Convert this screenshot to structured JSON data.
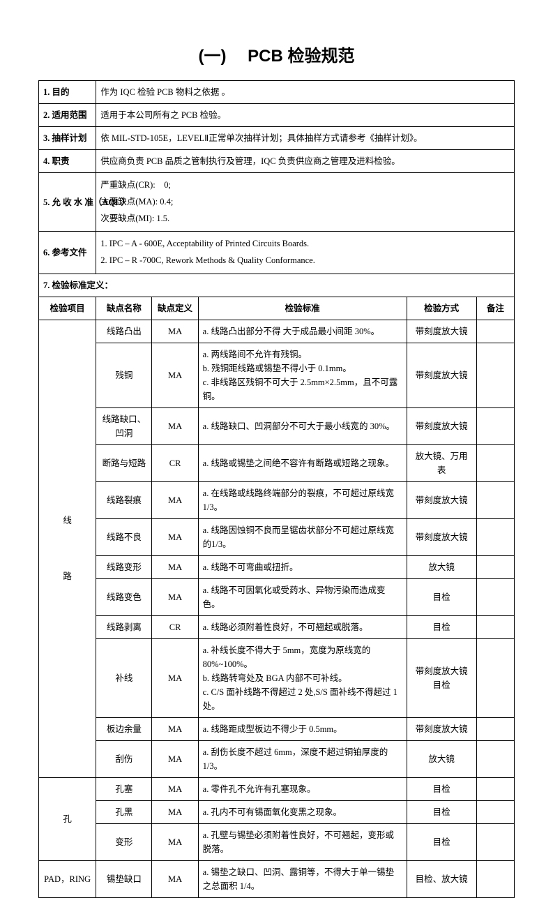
{
  "title": "(一)　 PCB 检验规范",
  "info_rows": [
    {
      "label": "1. 目的",
      "content": "作为 IQC 检验 PCB 物料之依据 。"
    },
    {
      "label": "2. 适用范围",
      "content": "适用于本公司所有之 PCB 检验。"
    },
    {
      "label": "3. 抽样计划",
      "content": "依 MIL-STD-105E，LEVELⅡ正常单次抽样计划；具体抽样方式请参考《抽样计划》。"
    },
    {
      "label": "4. 职责",
      "content": "供应商负责 PCB 品质之管制执行及管理，IQC 负责供应商之管理及进料检验。"
    }
  ],
  "aql": {
    "label": "5. 允 收 水 准（AQL）",
    "lines": [
      "严重缺点(CR):　0;",
      "主要缺点(MA): 0.4;",
      "次要缺点(MI): 1.5."
    ]
  },
  "ref": {
    "label": "6. 参考文件",
    "lines": [
      "1. IPC – A - 600E, Acceptability of Printed Circuits Boards.",
      "2. IPC – R -700C, Rework Methods & Quality Conformance."
    ]
  },
  "section7": "7. 检验标准定义：",
  "headers": {
    "item": "检验项目",
    "defect": "缺点名称",
    "def": "缺点定义",
    "standard": "检验标准",
    "method": "检验方式",
    "remark": "备注"
  },
  "groups": [
    {
      "item": "线\n\n\n\n路",
      "rows": [
        {
          "defect": "线路凸出",
          "def": "MA",
          "standard": "a. 线路凸出部分不得 大于成品最小间距 30%。",
          "method": "带刻度放大镜",
          "remark": ""
        },
        {
          "defect": "残铜",
          "def": "MA",
          "standard": "a. 两线路间不允许有残铜。\nb. 残铜距线路或锡垫不得小于 0.1mm。\nc. 非线路区残铜不可大于 2.5mm×2.5mm，且不可露铜。",
          "method": "带刻度放大镜",
          "remark": ""
        },
        {
          "defect": "线路缺口、凹洞",
          "def": "MA",
          "standard": "a. 线路缺口、凹洞部分不可大于最小线宽的 30%。",
          "method": "带刻度放大镜",
          "remark": ""
        },
        {
          "defect": "断路与短路",
          "def": "CR",
          "standard": "a. 线路或锡垫之间绝不容许有断路或短路之现象。",
          "method": "放大镜、万用表",
          "remark": ""
        },
        {
          "defect": "线路裂痕",
          "def": "MA",
          "standard": "a. 在线路或线路终端部分的裂痕，不可超过原线宽 1/3。",
          "method": "带刻度放大镜",
          "remark": ""
        },
        {
          "defect": "线路不良",
          "def": "MA",
          "standard": "a. 线路因蚀铜不良而呈锯齿状部分不可超过原线宽的1/3。",
          "method": "带刻度放大镜",
          "remark": ""
        },
        {
          "defect": "线路变形",
          "def": "MA",
          "standard": "a. 线路不可弯曲或扭折。",
          "method": "放大镜",
          "remark": ""
        },
        {
          "defect": "线路变色",
          "def": "MA",
          "standard": "a. 线路不可因氧化或受药水、异物污染而造成变色。",
          "method": "目检",
          "remark": ""
        },
        {
          "defect": "线路剥离",
          "def": "CR",
          "standard": "a. 线路必须附着性良好，不可翘起或脱落。",
          "method": "目检",
          "remark": ""
        },
        {
          "defect": "补线",
          "def": "MA",
          "standard": "a. 补线长度不得大于 5mm，宽度为原线宽的 80%~100%。\nb. 线路转弯处及 BGA 内部不可补线。\nc. C/S 面补线路不得超过 2 处,S/S 面补线不得超过 1 处。",
          "method": "带刻度放大镜目检",
          "remark": ""
        },
        {
          "defect": "板边余量",
          "def": "MA",
          "standard": "a. 线路距成型板边不得少于 0.5mm。",
          "method": "带刻度放大镜",
          "remark": ""
        },
        {
          "defect": "刮伤",
          "def": "MA",
          "standard": "a. 刮伤长度不超过 6mm，深度不超过铜铂厚度的 1/3。",
          "method": "放大镜",
          "remark": ""
        }
      ]
    },
    {
      "item": "孔",
      "rows": [
        {
          "defect": "孔塞",
          "def": "MA",
          "standard": "a. 零件孔不允许有孔塞现象。",
          "method": "目检",
          "remark": ""
        },
        {
          "defect": "孔黑",
          "def": "MA",
          "standard": "a. 孔内不可有锡面氧化变黑之现象。",
          "method": "目检",
          "remark": ""
        },
        {
          "defect": "变形",
          "def": "MA",
          "standard": "a. 孔壁与锡垫必须附着性良好，不可翘起，变形或脱落。",
          "method": "目检",
          "remark": ""
        }
      ]
    },
    {
      "item": "PAD，RING",
      "rows": [
        {
          "defect": "锡垫缺口",
          "def": "MA",
          "standard": "a. 锡垫之缺口、凹洞、露铜等，不得大于单一锡垫之总面积 1/4。",
          "method": "目检、放大镜",
          "remark": ""
        }
      ]
    }
  ]
}
